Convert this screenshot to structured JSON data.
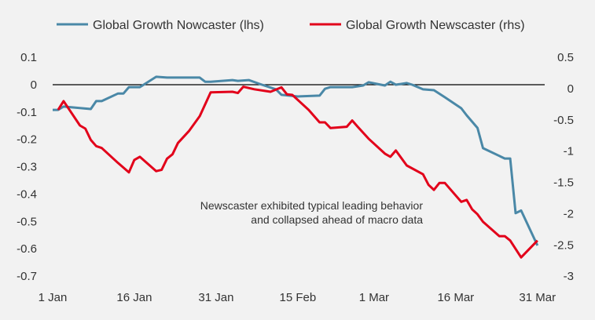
{
  "chart_data": {
    "type": "line",
    "title": "",
    "xlabel": "",
    "ylabel_left": "",
    "ylabel_right": "",
    "x_ticks": [
      "1 Jan",
      "16 Jan",
      "31 Jan",
      "15 Feb",
      "1 Mar",
      "16 Mar",
      "31 Mar"
    ],
    "x_tick_dates": [
      "01-01",
      "01-16",
      "01-31",
      "02-15",
      "03-01",
      "03-16",
      "03-31"
    ],
    "y_left_ticks": [
      "0.1",
      "0",
      "-0.1",
      "-0.2",
      "-0.3",
      "-0.4",
      "-0.5",
      "-0.6",
      "-0.7"
    ],
    "y_left_range": [
      -0.7,
      0.1
    ],
    "y_right_ticks": [
      "0.5",
      "0",
      "-0.5",
      "-1",
      "-1.5",
      "-2",
      "-2.5",
      "-3"
    ],
    "y_right_range": [
      -3,
      0.5
    ],
    "grid": false,
    "zero_line": true,
    "legend_position": "top",
    "annotation": [
      "Newscaster exhibited typical leading behavior",
      "and collapsed ahead of macro data"
    ],
    "series": [
      {
        "name": "Global Growth Nowcaster (lhs)",
        "axis": "left",
        "color": "#4a88a7",
        "x": [
          "01-01",
          "01-02",
          "01-03",
          "01-08",
          "01-09",
          "01-10",
          "01-13",
          "01-14",
          "01-15",
          "01-17",
          "01-20",
          "01-22",
          "01-28",
          "01-29",
          "01-30",
          "02-03",
          "02-04",
          "02-06",
          "02-08",
          "02-11",
          "02-12",
          "02-15",
          "02-19",
          "02-20",
          "02-21",
          "02-25",
          "02-27",
          "02-28",
          "03-03",
          "03-04",
          "03-05",
          "03-07",
          "03-08",
          "03-10",
          "03-12",
          "03-14",
          "03-17",
          "03-18",
          "03-20",
          "03-21",
          "03-25",
          "03-26",
          "03-27",
          "03-28",
          "03-31"
        ],
        "y": [
          -0.092,
          -0.092,
          -0.08,
          -0.089,
          -0.06,
          -0.06,
          -0.032,
          -0.032,
          -0.009,
          -0.009,
          0.029,
          0.026,
          0.026,
          0.011,
          0.011,
          0.017,
          0.014,
          0.017,
          0.003,
          -0.017,
          -0.037,
          -0.043,
          -0.04,
          -0.015,
          -0.009,
          -0.009,
          -0.003,
          0.009,
          -0.003,
          0.011,
          0,
          0.006,
          0,
          -0.017,
          -0.02,
          -0.046,
          -0.086,
          -0.112,
          -0.158,
          -0.232,
          -0.27,
          -0.27,
          -0.47,
          -0.46,
          -0.588
        ]
      },
      {
        "name": "Global Growth Newscaster (rhs)",
        "axis": "right",
        "color": "#e2001a",
        "x": [
          "01-02",
          "01-03",
          "01-06",
          "01-07",
          "01-08",
          "01-09",
          "01-10",
          "01-13",
          "01-15",
          "01-16",
          "01-17",
          "01-20",
          "01-21",
          "01-22",
          "01-23",
          "01-24",
          "01-26",
          "01-28",
          "01-30",
          "02-03",
          "02-04",
          "02-05",
          "02-07",
          "02-10",
          "02-12",
          "02-13",
          "02-14",
          "02-17",
          "02-19",
          "02-20",
          "02-21",
          "02-24",
          "02-25",
          "02-26",
          "02-28",
          "03-03",
          "03-04",
          "03-05",
          "03-07",
          "03-10",
          "03-11",
          "03-12",
          "03-13",
          "03-14",
          "03-17",
          "03-18",
          "03-19",
          "03-20",
          "03-21",
          "03-24",
          "03-25",
          "03-26",
          "03-28",
          "03-31"
        ],
        "y": [
          -0.34,
          -0.2,
          -0.59,
          -0.64,
          -0.82,
          -0.92,
          -0.95,
          -1.19,
          -1.34,
          -1.14,
          -1.09,
          -1.32,
          -1.3,
          -1.12,
          -1.05,
          -0.87,
          -0.68,
          -0.44,
          -0.06,
          -0.05,
          -0.07,
          0.03,
          -0.01,
          -0.05,
          0.02,
          -0.09,
          -0.1,
          -0.34,
          -0.54,
          -0.54,
          -0.63,
          -0.61,
          -0.51,
          -0.61,
          -0.8,
          -1.04,
          -1.09,
          -0.99,
          -1.23,
          -1.37,
          -1.54,
          -1.62,
          -1.51,
          -1.51,
          -1.81,
          -1.78,
          -1.93,
          -2.01,
          -2.13,
          -2.36,
          -2.36,
          -2.43,
          -2.7,
          -2.43
        ]
      }
    ]
  }
}
